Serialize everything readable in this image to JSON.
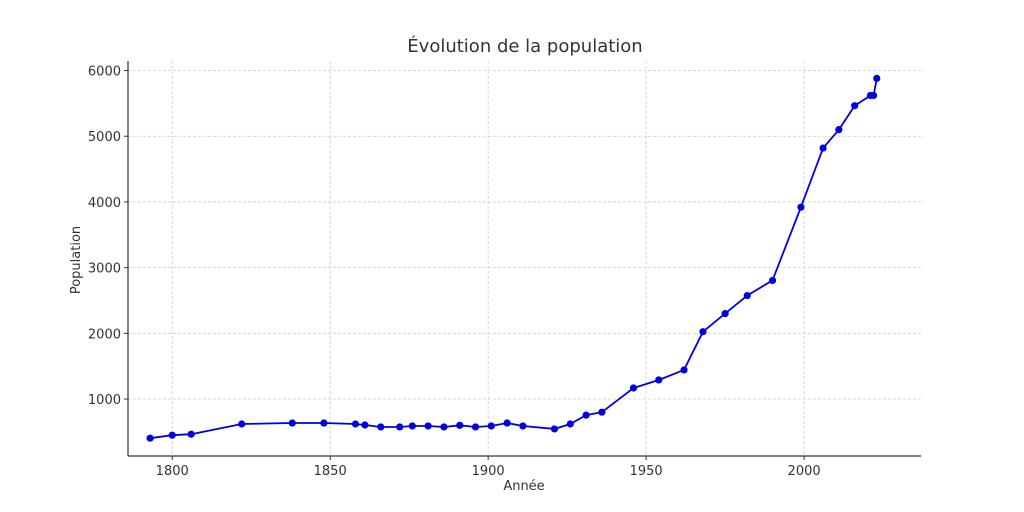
{
  "chart_data": {
    "type": "line",
    "title": "Évolution de la population",
    "xlabel": "Année",
    "ylabel": "Population",
    "xlim": [
      1786,
      2037
    ],
    "ylim": [
      133,
      6145
    ],
    "grid": true,
    "legend": null,
    "line_color": "#0000dd",
    "x_ticks": [
      1800,
      1850,
      1900,
      1950,
      2000
    ],
    "y_ticks": [
      1000,
      2000,
      3000,
      4000,
      5000,
      6000
    ],
    "x": [
      1793,
      1800,
      1806,
      1822,
      1838,
      1848,
      1858,
      1861,
      1866,
      1872,
      1876,
      1881,
      1886,
      1891,
      1896,
      1901,
      1906,
      1911,
      1921,
      1926,
      1931,
      1936,
      1946,
      1954,
      1962,
      1968,
      1975,
      1982,
      1990,
      1999,
      2006,
      2011,
      2016,
      2021,
      2022,
      2023
    ],
    "series": [
      {
        "name": "Population",
        "values": [
          404,
          450,
          465,
          620,
          635,
          635,
          620,
          605,
          575,
          575,
          590,
          590,
          575,
          600,
          575,
          590,
          635,
          590,
          545,
          620,
          755,
          800,
          1168,
          1290,
          1443,
          2025,
          2300,
          2575,
          2805,
          3920,
          4820,
          5100,
          5465,
          5620,
          5620,
          5880
        ]
      }
    ]
  }
}
